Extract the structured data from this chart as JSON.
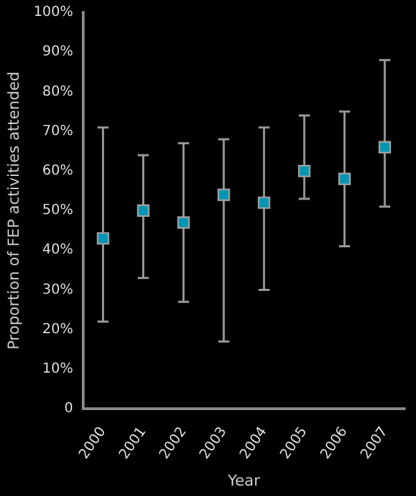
{
  "chart_data": {
    "type": "scatter",
    "xlabel": "Year",
    "ylabel": "Proportion of FEP activities attended",
    "categories": [
      "2000",
      "2001",
      "2002",
      "2003",
      "2004",
      "2005",
      "2006",
      "2007"
    ],
    "values": [
      43,
      50,
      47,
      54,
      52,
      60,
      58,
      66
    ],
    "errors": [
      [
        22,
        71
      ],
      [
        33,
        64
      ],
      [
        27,
        67
      ],
      [
        17,
        68
      ],
      [
        30,
        71
      ],
      [
        53,
        74
      ],
      [
        41,
        75
      ],
      [
        51,
        88
      ]
    ],
    "color": "#0096b4",
    "marker": "square",
    "grid": false,
    "legend": false,
    "ylim": [
      0,
      100
    ],
    "yticks": [
      0,
      {
        "value": 10,
        "label": "10%"
      },
      {
        "value": 20,
        "label": "20%"
      },
      {
        "value": 30,
        "label": "30%"
      },
      {
        "value": 40,
        "label": "40%"
      },
      {
        "value": 50,
        "label": "50%"
      },
      {
        "value": 60,
        "label": "60%"
      },
      {
        "value": 70,
        "label": "70%"
      },
      {
        "value": 80,
        "label": "80%"
      },
      {
        "value": 90,
        "label": "90%"
      },
      {
        "value": 100,
        "label": "100%"
      }
    ]
  }
}
